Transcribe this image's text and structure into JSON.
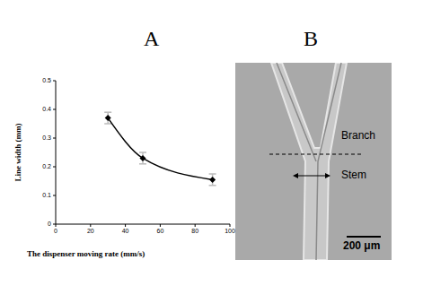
{
  "chart_data": {
    "type": "line",
    "title": "A",
    "x_label": "The dispenser moving rate (mm/s)",
    "y_label": "Line width (mm)",
    "x": [
      30,
      50,
      90
    ],
    "values": [
      0.37,
      0.23,
      0.155
    ],
    "errors": [
      0.02,
      0.02,
      0.02
    ],
    "color": "#000000",
    "marker": "diamond",
    "xlim": [
      0,
      100
    ],
    "xticks": [
      0,
      20,
      40,
      60,
      80,
      100
    ],
    "ylim": [
      0,
      0.5
    ],
    "yticks": [
      0,
      0.1,
      0.2,
      0.3,
      0.4,
      0.5
    ],
    "grid": false
  },
  "panel_b": {
    "title": "B",
    "annotations": [
      "Branch",
      "Stem"
    ],
    "scale_bar": "200 μm"
  }
}
